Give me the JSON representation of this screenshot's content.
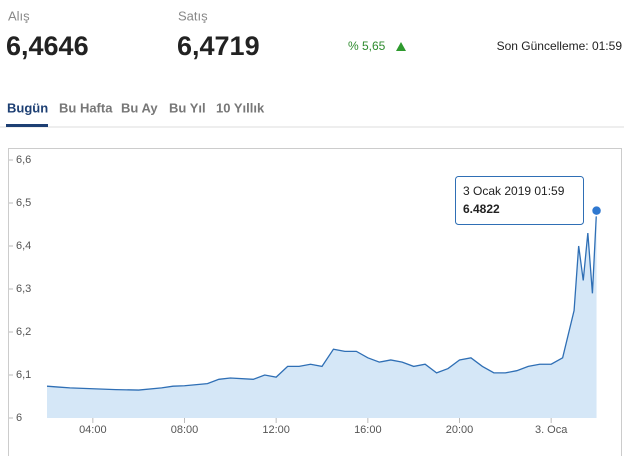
{
  "header": {
    "buy_label": "Alış",
    "buy_value": "6,4646",
    "sell_label": "Satış",
    "sell_value": "6,4719",
    "change": "% 5,65",
    "updated": "Son Güncelleme: 01:59"
  },
  "tabs": [
    "Bugün",
    "Bu Hafta",
    "Bu Ay",
    "Bu Yıl",
    "10 Yıllık"
  ],
  "chart_data": {
    "type": "area",
    "x": [
      2,
      2.5,
      3,
      4,
      5,
      6,
      7,
      7.5,
      8,
      9,
      9.5,
      10,
      11,
      11.5,
      12,
      12.5,
      13,
      13.5,
      14,
      14.5,
      15,
      15.5,
      16,
      16.5,
      17,
      17.5,
      18,
      18.5,
      19,
      19.5,
      20,
      20.5,
      21,
      21.5,
      22,
      22.5,
      23,
      23.5,
      24,
      24.5,
      25,
      25.2,
      25.4,
      25.6,
      25.8,
      25.98
    ],
    "series": [
      {
        "color": "#2f6fb5",
        "values": [
          6.074,
          6.072,
          6.07,
          6.068,
          6.066,
          6.065,
          6.07,
          6.074,
          6.075,
          6.08,
          6.09,
          6.093,
          6.09,
          6.1,
          6.095,
          6.12,
          6.12,
          6.125,
          6.12,
          6.16,
          6.155,
          6.155,
          6.14,
          6.13,
          6.135,
          6.13,
          6.12,
          6.125,
          6.105,
          6.115,
          6.135,
          6.14,
          6.12,
          6.105,
          6.105,
          6.11,
          6.12,
          6.125,
          6.125,
          6.14,
          6.25,
          6.4,
          6.32,
          6.43,
          6.29,
          6.4822
        ]
      }
    ],
    "tooltip_title": "3 Ocak 2019 01:59",
    "xlim": [
      2,
      26
    ],
    "xticks": [
      {
        "value": 4,
        "label": "04:00"
      },
      {
        "value": 8,
        "label": "08:00"
      },
      {
        "value": 12,
        "label": "12:00"
      },
      {
        "value": 16,
        "label": "16:00"
      },
      {
        "value": 20,
        "label": "20:00"
      },
      {
        "value": 24,
        "label": "3. Oca"
      }
    ],
    "ylim": [
      6,
      6.6
    ],
    "yticks": [
      6,
      {
        "value": 6.1,
        "label": "6,1"
      },
      {
        "value": 6.2,
        "label": "6,2"
      },
      {
        "value": 6.3,
        "label": "6,3"
      },
      {
        "value": 6.4,
        "label": "6,4"
      },
      {
        "value": 6.5,
        "label": "6,5"
      },
      {
        "value": 6.6,
        "label": "6,6"
      }
    ],
    "fill": "#d5e7f7"
  }
}
